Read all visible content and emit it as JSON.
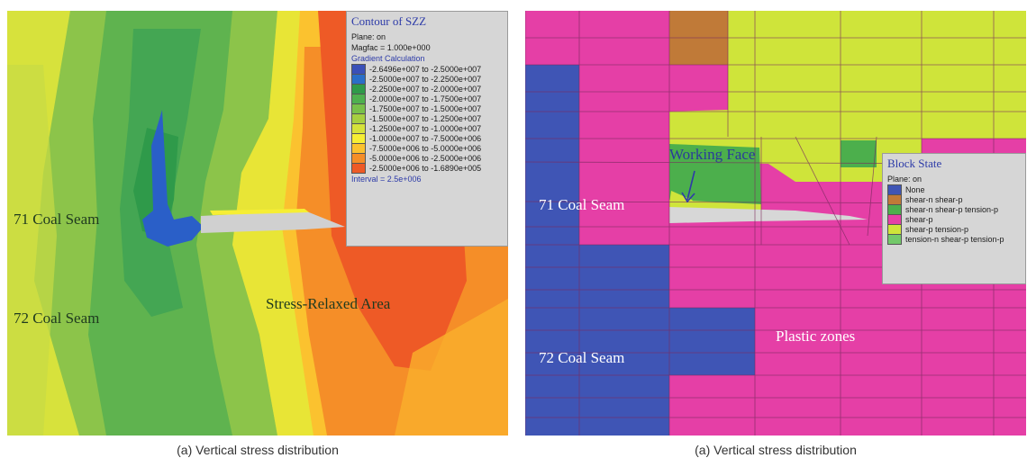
{
  "panels": [
    {
      "id": "a",
      "caption": "(a) Vertical stress distribution",
      "labels": {
        "seam71": "71 Coal Seam",
        "seam72": "72 Coal Seam",
        "relaxed": "Stress-Relaxed Area"
      },
      "legend": {
        "title": "Contour of SZZ",
        "plane": "Plane: on",
        "magfac": "Magfac =  1.000e+000",
        "gradient": "Gradient Calculation",
        "items": [
          {
            "label": "-2.6496e+007 to -2.5000e+007",
            "color": "#3a50b8"
          },
          {
            "label": "-2.5000e+007 to -2.2500e+007",
            "color": "#2a6ec8"
          },
          {
            "label": "-2.2500e+007 to -2.0000e+007",
            "color": "#2f9a4a"
          },
          {
            "label": "-2.0000e+007 to -1.7500e+007",
            "color": "#4fb04f"
          },
          {
            "label": "-1.7500e+007 to -1.5000e+007",
            "color": "#79c04a"
          },
          {
            "label": "-1.5000e+007 to -1.2500e+007",
            "color": "#a7cf40"
          },
          {
            "label": "-1.2500e+007 to -1.0000e+007",
            "color": "#d6e23a"
          },
          {
            "label": "-1.0000e+007 to -7.5000e+006",
            "color": "#f6ee34"
          },
          {
            "label": "-7.5000e+006 to -5.0000e+006",
            "color": "#fbc22f"
          },
          {
            "label": "-5.0000e+006 to -2.5000e+006",
            "color": "#f58e28"
          },
          {
            "label": "-2.5000e+006 to -1.6890e+005",
            "color": "#ee5a26"
          }
        ],
        "interval": "Interval =  2.5e+006"
      }
    },
    {
      "id": "b",
      "caption": "(a) Vertical stress distribution",
      "labels": {
        "working_face": "Working Face",
        "seam71": "71 Coal Seam",
        "seam72": "72 Coal Seam",
        "plastic": "Plastic zones"
      },
      "legend": {
        "title": "Block State",
        "plane": "Plane: on",
        "items": [
          {
            "label": "None",
            "color": "#3f55b5"
          },
          {
            "label": "shear-n shear-p",
            "color": "#c07a38"
          },
          {
            "label": "shear-n shear-p tension-p",
            "color": "#4caf4c"
          },
          {
            "label": "shear-p",
            "color": "#e53fa6"
          },
          {
            "label": "shear-p tension-p",
            "color": "#cfe43a"
          },
          {
            "label": "tension-n shear-p tension-p",
            "color": "#73c96a"
          }
        ]
      }
    }
  ]
}
